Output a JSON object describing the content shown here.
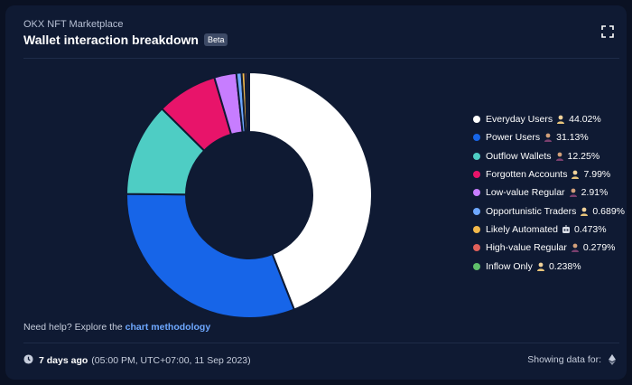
{
  "header": {
    "subtitle": "OKX NFT Marketplace",
    "title": "Wallet interaction breakdown",
    "badge": "Beta",
    "expand_icon": "expand-icon"
  },
  "chart_data": {
    "type": "pie",
    "categories": [
      "Everyday Users",
      "Power Users",
      "Outflow Wallets",
      "Forgotten Accounts",
      "Low-value Regular",
      "Opportunistic Traders",
      "Likely Automated",
      "High-value Regular",
      "Inflow Only"
    ],
    "values": [
      44.02,
      31.13,
      12.25,
      7.99,
      2.91,
      0.689,
      0.473,
      0.279,
      0.238
    ],
    "value_labels": [
      "44.02%",
      "31.13%",
      "12.25%",
      "7.99%",
      "2.91%",
      "0.689%",
      "0.473%",
      "0.279%",
      "0.238%"
    ],
    "colors": [
      "#ffffff",
      "#1765e8",
      "#4ecdc4",
      "#e8146a",
      "#c77dff",
      "#6ea8ff",
      "#f2b84b",
      "#e0605a",
      "#5fbf6a"
    ],
    "legend_icons": [
      "person-icon",
      "person-dark-icon",
      "person-dark-icon",
      "person-icon",
      "person-dark-icon",
      "person-icon",
      "robot-icon",
      "person-dark-icon",
      "person-icon"
    ],
    "donut": true,
    "legend_position": "right"
  },
  "help": {
    "prefix": "Need help? Explore the ",
    "link": "chart methodology"
  },
  "footer": {
    "ago": "7 days ago",
    "timestamp": "(05:00 PM, UTC+07:00, 11 Sep 2023)",
    "showing_label": "Showing data for:",
    "clock_icon": "clock-icon",
    "chain_icon": "ethereum-icon"
  }
}
